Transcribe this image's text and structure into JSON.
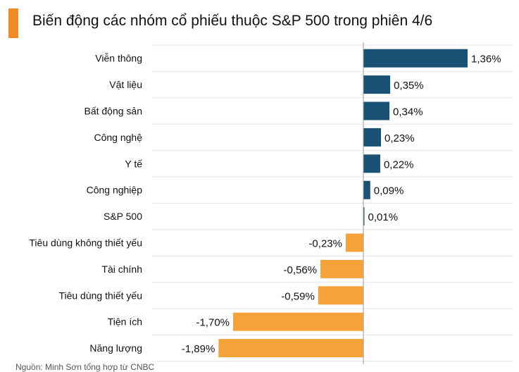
{
  "title": "Biến động các nhóm cổ phiếu thuộc S&P 500 trong phiên 4/6",
  "source": "Nguồn: Minh Sơn tổng hợp từ CNBC",
  "colors": {
    "accent": "#f28a28",
    "positive": "#1a5276",
    "negative": "#f5a23a",
    "gridline": "#e6e6e6"
  },
  "chart_data": {
    "type": "bar",
    "orientation": "horizontal",
    "categories": [
      "Viễn thông",
      "Vật liệu",
      "Bất động sản",
      "Công nghệ",
      "Y tế",
      "Công nghiệp",
      "S&P 500",
      "Tiêu dùng không thiết yếu",
      "Tài chính",
      "Tiêu dùng thiết yếu",
      "Tiện ích",
      "Năng lượng"
    ],
    "values": [
      1.36,
      0.35,
      0.34,
      0.23,
      0.22,
      0.09,
      0.01,
      -0.23,
      -0.56,
      -0.59,
      -1.7,
      -1.89
    ],
    "value_labels": [
      "1,36%",
      "0,35%",
      "0,34%",
      "0,23%",
      "0,22%",
      "0,09%",
      "0,01%",
      "-0,23%",
      "-0,56%",
      "-0,59%",
      "-1,70%",
      "-1,89%"
    ],
    "title": "Biến động các nhóm cổ phiếu thuộc S&P 500 trong phiên 4/6",
    "xlabel": "",
    "ylabel": "",
    "xlim": [
      -2.0,
      1.5
    ],
    "grid": true,
    "legend": "none"
  }
}
